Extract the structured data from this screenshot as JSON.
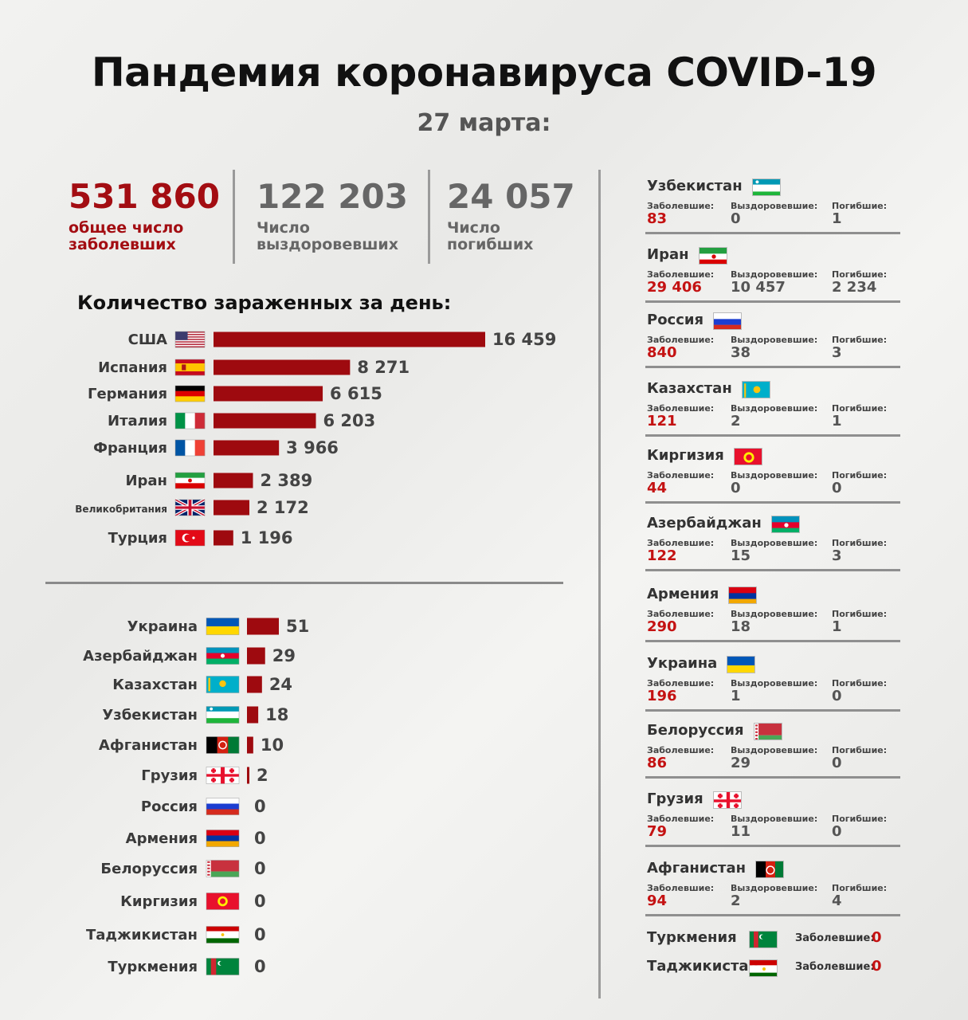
{
  "title": "Пандемия коронавируса COVID-19",
  "date": "27 марта:",
  "stats": [
    {
      "value": "531 860",
      "label1": "общее число",
      "label2": "заболевших"
    },
    {
      "value": "122 203",
      "label1": "Число",
      "label2": "выздоровевших"
    },
    {
      "value": "24 057",
      "label1": "Число",
      "label2": "погибших"
    }
  ],
  "chart_heading": "Количество зараженных за день:",
  "chart_data": [
    {
      "type": "bar",
      "orientation": "horizontal",
      "title": "Количество зараженных за день:",
      "categories": [
        "США",
        "Испания",
        "Германия",
        "Италия",
        "Франция",
        "Иран",
        "Великобритания",
        "Турция"
      ],
      "values": [
        16459,
        8271,
        6615,
        6203,
        3966,
        2389,
        2172,
        1196
      ],
      "value_labels": [
        "16 459",
        "8 271",
        "6 615",
        "6 203",
        "3 966",
        "2 389",
        "2 172",
        "1 196"
      ],
      "flags": [
        "usa",
        "spain",
        "germany",
        "italy",
        "france",
        "iran",
        "uk",
        "turkey"
      ],
      "color": "#9e0a0f"
    },
    {
      "type": "bar",
      "orientation": "horizontal",
      "categories": [
        "Украина",
        "Азербайджан",
        "Казахстан",
        "Узбекистан",
        "Афганистан",
        "Грузия",
        "Россия",
        "Армения",
        "Белоруссия",
        "Киргизия",
        "Таджикистан",
        "Туркмения"
      ],
      "values": [
        51,
        29,
        24,
        18,
        10,
        2,
        0,
        0,
        0,
        0,
        0,
        0
      ],
      "value_labels": [
        "51",
        "29",
        "24",
        "18",
        "10",
        "2",
        "0",
        "0",
        "0",
        "0",
        "0",
        "0"
      ],
      "flags": [
        "ukraine",
        "azerbaijan",
        "kazakhstan",
        "uzbekistan",
        "afghanistan",
        "georgia",
        "russia",
        "armenia",
        "belarus",
        "kyrgyzstan",
        "tajikistan",
        "turkmenistan"
      ],
      "color": "#9e0a0f"
    }
  ],
  "right_panel": {
    "labels": {
      "cases": "Заболевшие:",
      "recovered": "Выздоровевшие:",
      "deaths": "Погибшие:"
    },
    "countries": [
      {
        "name": "Узбекистан",
        "flag": "uzbekistan",
        "cases": "83",
        "recovered": "0",
        "deaths": "1"
      },
      {
        "name": "Иран",
        "flag": "iran",
        "cases": "29 406",
        "recovered": "10 457",
        "deaths": "2 234"
      },
      {
        "name": "Россия",
        "flag": "russia",
        "cases": "840",
        "recovered": "38",
        "deaths": "3"
      },
      {
        "name": "Казахстан",
        "flag": "kazakhstan",
        "cases": "121",
        "recovered": "2",
        "deaths": "1"
      },
      {
        "name": "Киргизия",
        "flag": "kyrgyzstan",
        "cases": "44",
        "recovered": "0",
        "deaths": "0"
      },
      {
        "name": "Азербайджан",
        "flag": "azerbaijan",
        "cases": "122",
        "recovered": "15",
        "deaths": "3"
      },
      {
        "name": "Армения",
        "flag": "armenia",
        "cases": "290",
        "recovered": "18",
        "deaths": "1"
      },
      {
        "name": "Украина",
        "flag": "ukraine",
        "cases": "196",
        "recovered": "1",
        "deaths": "0"
      },
      {
        "name": "Белоруссия",
        "flag": "belarus",
        "cases": "86",
        "recovered": "29",
        "deaths": "0"
      },
      {
        "name": "Грузия",
        "flag": "georgia",
        "cases": "79",
        "recovered": "11",
        "deaths": "0"
      },
      {
        "name": "Афганистан",
        "flag": "afghanistan",
        "cases": "94",
        "recovered": "2",
        "deaths": "4"
      }
    ],
    "tail": [
      {
        "name": "Туркмения",
        "flag": "turkmenistan",
        "label": "Заболевшие:",
        "cases": "0"
      },
      {
        "name": "Таджикистан",
        "flag": "tajikistan",
        "label": "Заболевшие:",
        "cases": "0"
      }
    ]
  }
}
